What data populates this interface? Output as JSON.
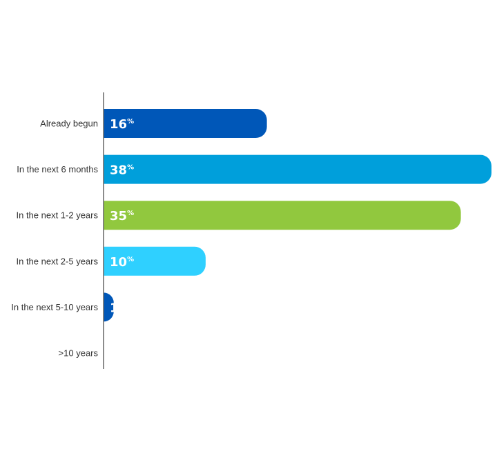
{
  "chart_data": {
    "type": "bar",
    "orientation": "horizontal",
    "categories": [
      "Already begun",
      "In the next 6 months",
      "In the next 1-2 years",
      "In the next 2-5 years",
      "In the next 5-10 years",
      ">10 years"
    ],
    "values": [
      16,
      38,
      35,
      10,
      1,
      0
    ],
    "value_labels": [
      "16",
      "38",
      "35",
      "10",
      "1",
      ""
    ],
    "value_suffix": "%",
    "colors": [
      "#0057b8",
      "#009fdb",
      "#91c83e",
      "#2fd0ff",
      "#0057b8",
      "#0057b8"
    ],
    "xlim": [
      0,
      38
    ],
    "grid": false,
    "legend": "none",
    "title": "",
    "xlabel": "",
    "ylabel": ""
  }
}
